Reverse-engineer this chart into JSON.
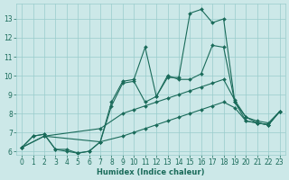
{
  "xlabel": "Humidex (Indice chaleur)",
  "bg_color": "#cce8e8",
  "grid_color": "#99cccc",
  "line_color": "#1a6b5a",
  "xlim": [
    -0.5,
    23.5
  ],
  "ylim": [
    5.8,
    13.8
  ],
  "yticks": [
    6,
    7,
    8,
    9,
    10,
    11,
    12,
    13
  ],
  "xticks": [
    0,
    1,
    2,
    3,
    4,
    5,
    6,
    7,
    8,
    9,
    10,
    11,
    12,
    13,
    14,
    15,
    16,
    17,
    18,
    19,
    20,
    21,
    22,
    23
  ],
  "series": [
    {
      "x": [
        0,
        1,
        2,
        3,
        4,
        5,
        6,
        7,
        8,
        9,
        10,
        11,
        12,
        13,
        14,
        15,
        16,
        17,
        18,
        19,
        20,
        21,
        22,
        23
      ],
      "y": [
        6.2,
        6.8,
        6.9,
        6.1,
        6.1,
        5.9,
        6.0,
        6.5,
        8.6,
        9.7,
        9.8,
        11.5,
        8.9,
        9.9,
        9.9,
        13.3,
        13.5,
        12.8,
        13.0,
        8.6,
        7.6,
        7.5,
        7.4,
        8.1
      ]
    },
    {
      "x": [
        0,
        1,
        2,
        3,
        4,
        5,
        6,
        7,
        8,
        9,
        10,
        11,
        12,
        13,
        14,
        15,
        16,
        17,
        18,
        19,
        20,
        21,
        22,
        23
      ],
      "y": [
        6.2,
        6.8,
        6.9,
        6.1,
        6.0,
        5.9,
        6.0,
        6.5,
        8.4,
        9.6,
        9.7,
        8.6,
        8.9,
        10.0,
        9.8,
        9.8,
        10.1,
        11.6,
        11.5,
        8.6,
        7.8,
        7.5,
        7.4,
        8.1
      ]
    },
    {
      "x": [
        0,
        2,
        7,
        9,
        10,
        11,
        12,
        13,
        14,
        15,
        16,
        17,
        18,
        19,
        20,
        21,
        22,
        23
      ],
      "y": [
        6.2,
        6.8,
        7.2,
        8.0,
        8.2,
        8.4,
        8.6,
        8.8,
        9.0,
        9.2,
        9.4,
        9.6,
        9.8,
        8.7,
        7.8,
        7.6,
        7.5,
        8.1
      ]
    },
    {
      "x": [
        0,
        2,
        7,
        9,
        10,
        11,
        12,
        13,
        14,
        15,
        16,
        17,
        18,
        19,
        20,
        21,
        22,
        23
      ],
      "y": [
        6.2,
        6.8,
        6.5,
        6.8,
        7.0,
        7.2,
        7.4,
        7.6,
        7.8,
        8.0,
        8.2,
        8.4,
        8.6,
        8.3,
        7.6,
        7.5,
        7.4,
        8.1
      ]
    }
  ]
}
